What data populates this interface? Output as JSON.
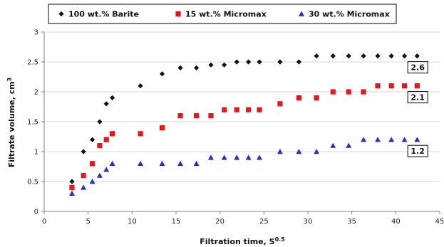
{
  "chart_data": {
    "type": "scatter",
    "xlabel": "Filtration time, S",
    "xlabel_sup": "0.5",
    "ylabel": "Filtrate volume, cm",
    "ylabel_sup": "3",
    "xlim": [
      0,
      45
    ],
    "ylim": [
      0,
      3
    ],
    "xticks": [
      0,
      5,
      10,
      15,
      20,
      25,
      30,
      35,
      40,
      45
    ],
    "yticks": [
      0,
      0.5,
      1,
      1.5,
      2,
      2.5,
      3
    ],
    "xtick_labels": [
      "0",
      "5",
      "10",
      "15",
      "20",
      "25",
      "30",
      "35",
      "40",
      "45"
    ],
    "ytick_labels": [
      "0",
      "0.5",
      "1",
      "1.5",
      "2",
      "2.5",
      "3"
    ],
    "grid": "horizontal",
    "legend_position": "top",
    "series": [
      {
        "name": "100 wt.% Barite",
        "marker": "diamond",
        "color": "#111111",
        "x": [
          3.16,
          4.47,
          5.48,
          6.32,
          7.07,
          7.75,
          10.95,
          13.42,
          15.49,
          17.32,
          18.97,
          20.49,
          21.91,
          23.24,
          24.49,
          26.83,
          28.98,
          30.98,
          32.86,
          34.64,
          36.33,
          37.95,
          39.5,
          40.99,
          42.43
        ],
        "y": [
          0.5,
          1.0,
          1.2,
          1.5,
          1.8,
          1.9,
          2.1,
          2.3,
          2.4,
          2.4,
          2.45,
          2.45,
          2.5,
          2.5,
          2.5,
          2.5,
          2.5,
          2.6,
          2.6,
          2.6,
          2.6,
          2.6,
          2.6,
          2.6,
          2.6
        ]
      },
      {
        "name": "15 wt.% Micromax",
        "marker": "square",
        "color": "#e8161b",
        "x": [
          3.16,
          4.47,
          5.48,
          6.32,
          7.07,
          7.75,
          10.95,
          13.42,
          15.49,
          17.32,
          18.97,
          20.49,
          21.91,
          23.24,
          24.49,
          26.83,
          28.98,
          30.98,
          32.86,
          34.64,
          36.33,
          37.95,
          39.5,
          40.99,
          42.43
        ],
        "y": [
          0.4,
          0.6,
          0.8,
          1.1,
          1.2,
          1.3,
          1.3,
          1.4,
          1.6,
          1.6,
          1.6,
          1.7,
          1.7,
          1.7,
          1.7,
          1.8,
          1.9,
          1.9,
          2.0,
          2.0,
          2.0,
          2.1,
          2.1,
          2.1,
          2.1
        ]
      },
      {
        "name": "30 wt.% Micromax",
        "marker": "triangle",
        "color": "#2231c8",
        "x": [
          3.16,
          4.47,
          5.48,
          6.32,
          7.07,
          7.75,
          10.95,
          13.42,
          15.49,
          17.32,
          18.97,
          20.49,
          21.91,
          23.24,
          24.49,
          26.83,
          28.98,
          30.98,
          32.86,
          34.64,
          36.33,
          37.95,
          39.5,
          40.99,
          42.43
        ],
        "y": [
          0.3,
          0.4,
          0.5,
          0.6,
          0.7,
          0.8,
          0.8,
          0.8,
          0.8,
          0.8,
          0.9,
          0.9,
          0.9,
          0.9,
          0.9,
          1.0,
          1.0,
          1.0,
          1.1,
          1.1,
          1.2,
          1.2,
          1.2,
          1.2,
          1.2
        ]
      }
    ],
    "annotations": [
      {
        "text": "2.6",
        "x": 42.5,
        "y": 2.6
      },
      {
        "text": "2.1",
        "x": 42.5,
        "y": 2.1
      },
      {
        "text": "1.2",
        "x": 42.5,
        "y": 1.2
      }
    ]
  }
}
